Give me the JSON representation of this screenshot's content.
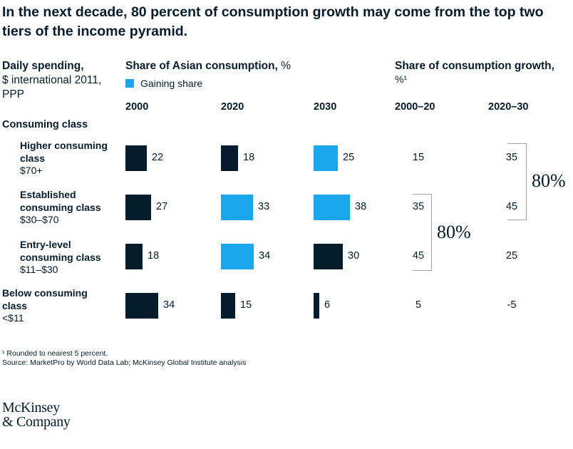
{
  "title": "In the next decade, 80 percent of consumption growth may come from the top two tiers of the income pyramid.",
  "headers": {
    "daily_spending_line1": "Daily spending,",
    "daily_spending_line2": "$ international 2011, PPP",
    "share_title": "Share of Asian consumption,",
    "share_unit": " %",
    "legend_label": "Gaining share",
    "growth_title": "Share of consumption growth,",
    "growth_unit": "%¹"
  },
  "consuming_class_label": "Consuming class",
  "colors": {
    "dark": "#051c2c",
    "gaining": "#1ba6eb",
    "bracket": "#a0a0a0"
  },
  "footnote": "¹ Rounded to nearest 5 percent.",
  "source": "Source: MarketPro by World Data Lab; McKinsey Global Institute analysis",
  "logo_line1": "McKinsey",
  "logo_line2": "& Company",
  "chart_data": {
    "type": "bar",
    "orientation": "horizontal",
    "categories": [
      {
        "name": "Higher consuming class",
        "range": "$70+"
      },
      {
        "name": "Established consuming class",
        "range": "$30–$70"
      },
      {
        "name": "Entry-level consuming class",
        "range": "$11–$30"
      },
      {
        "name": "Below consuming class",
        "range": "<$11"
      }
    ],
    "series": [
      {
        "name": "2000",
        "values": [
          22,
          27,
          18,
          34
        ],
        "gaining_share": [
          false,
          false,
          false,
          false
        ]
      },
      {
        "name": "2020",
        "values": [
          18,
          33,
          34,
          15
        ],
        "gaining_share": [
          false,
          true,
          true,
          false
        ]
      },
      {
        "name": "2030",
        "values": [
          25,
          38,
          30,
          6
        ],
        "gaining_share": [
          true,
          true,
          false,
          false
        ]
      }
    ],
    "growth_share": [
      {
        "name": "2000–20",
        "values": [
          15,
          35,
          45,
          5
        ]
      },
      {
        "name": "2020–30",
        "values": [
          35,
          45,
          25,
          -5
        ]
      }
    ],
    "annotations": [
      {
        "period": "2000–20",
        "categories": [
          "Established consuming class",
          "Entry-level consuming class"
        ],
        "label": "80%"
      },
      {
        "period": "2020–30",
        "categories": [
          "Higher consuming class",
          "Established consuming class"
        ],
        "label": "80%"
      }
    ],
    "legend": {
      "label": "Gaining share",
      "color": "#1ba6eb",
      "position": "top-left"
    }
  }
}
